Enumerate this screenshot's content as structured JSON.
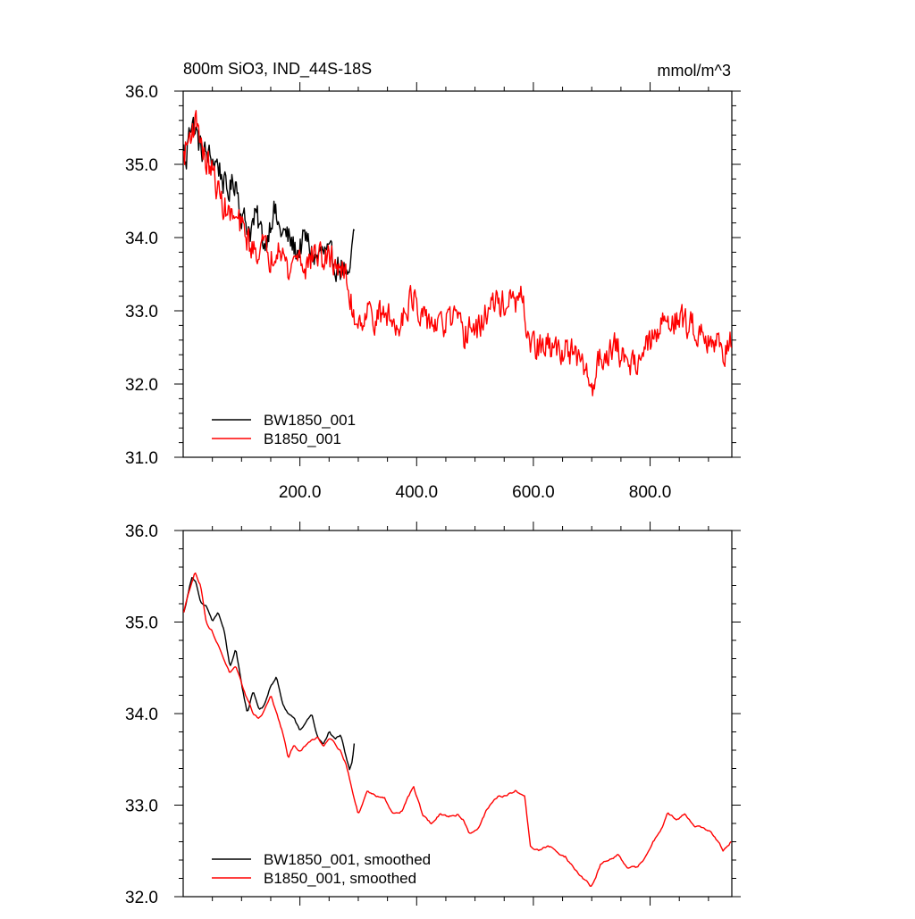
{
  "chart_data": [
    {
      "type": "line",
      "title": "800m SiO3, IND_44S-18S",
      "units": "mmol/m^3",
      "xlim": [
        0,
        940
      ],
      "ylim": [
        31.0,
        36.0
      ],
      "xticks": [
        200,
        400,
        600,
        800
      ],
      "xtick_labels": [
        "200.0",
        "400.0",
        "600.0",
        "800.0"
      ],
      "yticks": [
        31.0,
        32.0,
        33.0,
        34.0,
        35.0,
        36.0
      ],
      "ytick_labels": [
        "31.0",
        "32.0",
        "33.0",
        "34.0",
        "35.0",
        "36.0"
      ],
      "legend_position": "bottom-left",
      "series": [
        {
          "name": "BW1850_001",
          "color": "#000000",
          "noise": 0.17,
          "points": [
            [
              1,
              35.2
            ],
            [
              5,
              34.9
            ],
            [
              10,
              35.6
            ],
            [
              20,
              35.5
            ],
            [
              30,
              35.2
            ],
            [
              45,
              35.1
            ],
            [
              60,
              35.0
            ],
            [
              75,
              34.6
            ],
            [
              90,
              34.8
            ],
            [
              100,
              34.3
            ],
            [
              115,
              34.1
            ],
            [
              125,
              34.3
            ],
            [
              140,
              33.9
            ],
            [
              155,
              34.4
            ],
            [
              165,
              34.1
            ],
            [
              180,
              34.0
            ],
            [
              195,
              33.8
            ],
            [
              210,
              34.0
            ],
            [
              225,
              33.7
            ],
            [
              240,
              33.8
            ],
            [
              255,
              33.7
            ],
            [
              265,
              33.6
            ],
            [
              275,
              33.6
            ],
            [
              282,
              33.3
            ],
            [
              288,
              33.7
            ],
            [
              294,
              34.1
            ]
          ]
        },
        {
          "name": "B1850_001",
          "color": "#ff0000",
          "noise": 0.18,
          "points": [
            [
              1,
              35.1
            ],
            [
              15,
              35.5
            ],
            [
              25,
              35.6
            ],
            [
              35,
              35.1
            ],
            [
              50,
              34.9
            ],
            [
              65,
              34.5
            ],
            [
              80,
              34.3
            ],
            [
              95,
              34.2
            ],
            [
              110,
              34.0
            ],
            [
              120,
              33.8
            ],
            [
              135,
              33.9
            ],
            [
              150,
              33.7
            ],
            [
              165,
              34.0
            ],
            [
              180,
              33.5
            ],
            [
              195,
              33.8
            ],
            [
              210,
              33.6
            ],
            [
              225,
              33.8
            ],
            [
              240,
              33.7
            ],
            [
              255,
              33.7
            ],
            [
              270,
              33.6
            ],
            [
              280,
              33.4
            ],
            [
              290,
              33.0
            ],
            [
              300,
              32.85
            ],
            [
              315,
              33.0
            ],
            [
              330,
              32.9
            ],
            [
              350,
              32.95
            ],
            [
              365,
              32.75
            ],
            [
              380,
              33.05
            ],
            [
              395,
              33.2
            ],
            [
              405,
              32.8
            ],
            [
              420,
              32.9
            ],
            [
              440,
              32.75
            ],
            [
              455,
              32.9
            ],
            [
              470,
              32.85
            ],
            [
              480,
              32.6
            ],
            [
              490,
              32.8
            ],
            [
              505,
              32.7
            ],
            [
              520,
              33.0
            ],
            [
              535,
              33.1
            ],
            [
              550,
              33.1
            ],
            [
              565,
              33.1
            ],
            [
              580,
              33.15
            ],
            [
              590,
              32.7
            ],
            [
              600,
              32.5
            ],
            [
              615,
              32.5
            ],
            [
              630,
              32.5
            ],
            [
              645,
              32.45
            ],
            [
              660,
              32.5
            ],
            [
              675,
              32.3
            ],
            [
              690,
              32.2
            ],
            [
              700,
              31.9
            ],
            [
              710,
              32.3
            ],
            [
              725,
              32.45
            ],
            [
              740,
              32.5
            ],
            [
              755,
              32.35
            ],
            [
              770,
              32.3
            ],
            [
              785,
              32.4
            ],
            [
              800,
              32.55
            ],
            [
              815,
              32.7
            ],
            [
              830,
              32.95
            ],
            [
              845,
              32.85
            ],
            [
              860,
              32.85
            ],
            [
              880,
              32.75
            ],
            [
              900,
              32.65
            ],
            [
              920,
              32.5
            ],
            [
              930,
              32.45
            ],
            [
              940,
              32.7
            ]
          ]
        }
      ]
    },
    {
      "type": "line",
      "xlim": [
        0,
        940
      ],
      "ylim": [
        32.0,
        36.0
      ],
      "yticks": [
        32.0,
        33.0,
        34.0,
        35.0,
        36.0
      ],
      "ytick_labels": [
        "32.0",
        "33.0",
        "34.0",
        "35.0",
        "36.0"
      ],
      "legend_position": "bottom-left",
      "series": [
        {
          "name": "BW1850_001, smoothed",
          "color": "#000000",
          "noise": 0.035,
          "points": [
            [
              1,
              35.1
            ],
            [
              8,
              35.3
            ],
            [
              15,
              35.5
            ],
            [
              22,
              35.45
            ],
            [
              30,
              35.2
            ],
            [
              40,
              35.15
            ],
            [
              50,
              35.0
            ],
            [
              60,
              35.1
            ],
            [
              70,
              34.9
            ],
            [
              80,
              34.5
            ],
            [
              90,
              34.7
            ],
            [
              100,
              34.3
            ],
            [
              110,
              34.0
            ],
            [
              120,
              34.25
            ],
            [
              130,
              34.05
            ],
            [
              140,
              34.1
            ],
            [
              150,
              34.3
            ],
            [
              160,
              34.4
            ],
            [
              170,
              34.1
            ],
            [
              180,
              34.0
            ],
            [
              190,
              33.95
            ],
            [
              200,
              33.8
            ],
            [
              210,
              33.9
            ],
            [
              220,
              34.0
            ],
            [
              230,
              33.75
            ],
            [
              240,
              33.65
            ],
            [
              250,
              33.8
            ],
            [
              260,
              33.7
            ],
            [
              270,
              33.75
            ],
            [
              278,
              33.55
            ],
            [
              285,
              33.4
            ],
            [
              290,
              33.5
            ],
            [
              294,
              33.75
            ]
          ]
        },
        {
          "name": "B1850_001, smoothed",
          "color": "#ff0000",
          "noise": 0.035,
          "points": [
            [
              1,
              35.1
            ],
            [
              10,
              35.35
            ],
            [
              20,
              35.55
            ],
            [
              30,
              35.4
            ],
            [
              40,
              35.0
            ],
            [
              50,
              34.9
            ],
            [
              60,
              34.75
            ],
            [
              70,
              34.6
            ],
            [
              80,
              34.45
            ],
            [
              90,
              34.5
            ],
            [
              100,
              34.3
            ],
            [
              110,
              34.15
            ],
            [
              120,
              34.0
            ],
            [
              130,
              33.95
            ],
            [
              140,
              34.05
            ],
            [
              150,
              34.2
            ],
            [
              160,
              34.0
            ],
            [
              170,
              33.8
            ],
            [
              180,
              33.5
            ],
            [
              190,
              33.65
            ],
            [
              200,
              33.6
            ],
            [
              210,
              33.65
            ],
            [
              220,
              33.7
            ],
            [
              230,
              33.75
            ],
            [
              240,
              33.65
            ],
            [
              250,
              33.75
            ],
            [
              260,
              33.7
            ],
            [
              270,
              33.6
            ],
            [
              280,
              33.45
            ],
            [
              290,
              33.15
            ],
            [
              300,
              32.9
            ],
            [
              315,
              33.15
            ],
            [
              330,
              33.1
            ],
            [
              345,
              33.1
            ],
            [
              360,
              32.9
            ],
            [
              375,
              32.95
            ],
            [
              385,
              33.1
            ],
            [
              395,
              33.2
            ],
            [
              410,
              32.9
            ],
            [
              425,
              32.8
            ],
            [
              440,
              32.9
            ],
            [
              455,
              32.85
            ],
            [
              470,
              32.9
            ],
            [
              480,
              32.85
            ],
            [
              490,
              32.7
            ],
            [
              505,
              32.75
            ],
            [
              520,
              32.95
            ],
            [
              540,
              33.1
            ],
            [
              555,
              33.1
            ],
            [
              570,
              33.15
            ],
            [
              585,
              33.1
            ],
            [
              595,
              32.55
            ],
            [
              610,
              32.5
            ],
            [
              625,
              32.55
            ],
            [
              640,
              32.5
            ],
            [
              655,
              32.45
            ],
            [
              670,
              32.3
            ],
            [
              685,
              32.2
            ],
            [
              700,
              32.1
            ],
            [
              715,
              32.35
            ],
            [
              730,
              32.4
            ],
            [
              745,
              32.45
            ],
            [
              760,
              32.3
            ],
            [
              775,
              32.3
            ],
            [
              790,
              32.4
            ],
            [
              805,
              32.6
            ],
            [
              820,
              32.75
            ],
            [
              830,
              32.95
            ],
            [
              845,
              32.85
            ],
            [
              860,
              32.9
            ],
            [
              875,
              32.8
            ],
            [
              890,
              32.75
            ],
            [
              905,
              32.7
            ],
            [
              915,
              32.6
            ],
            [
              925,
              32.5
            ],
            [
              935,
              32.55
            ],
            [
              940,
              32.6
            ]
          ]
        }
      ]
    }
  ]
}
